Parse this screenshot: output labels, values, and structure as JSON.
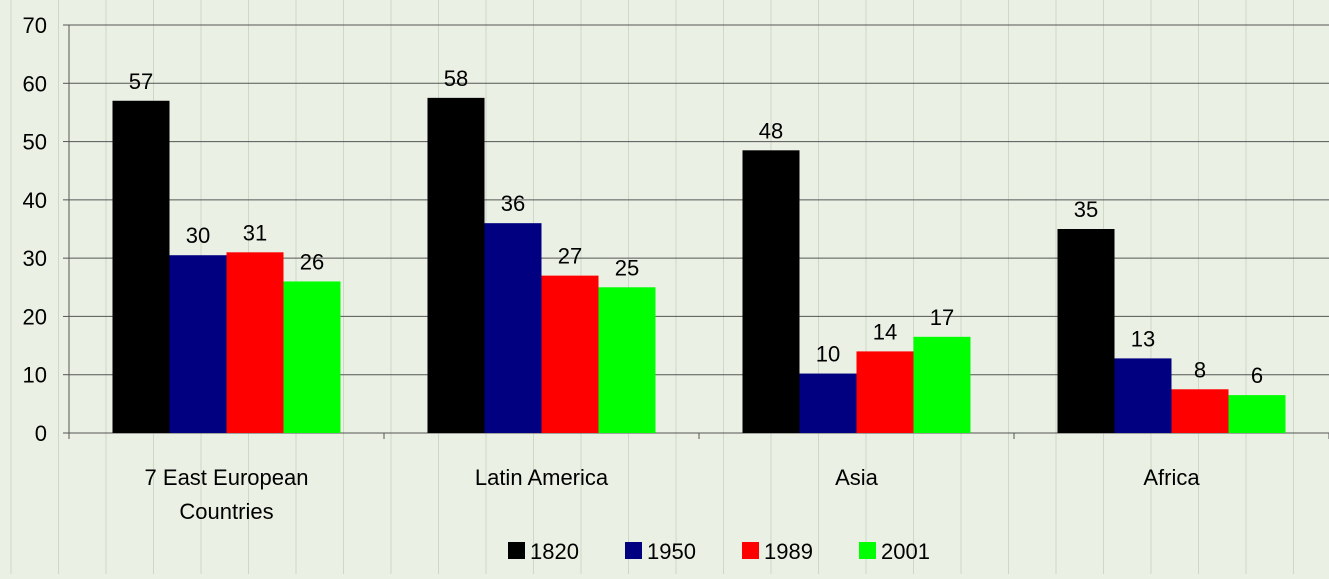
{
  "chart_data": {
    "type": "bar",
    "title": "",
    "xlabel": "",
    "ylabel": "",
    "ylim": [
      0,
      70
    ],
    "yticks": [
      0,
      10,
      20,
      30,
      40,
      50,
      60,
      70
    ],
    "grid": true,
    "legend_position": "bottom",
    "categories": [
      [
        "7 East European",
        "Countries"
      ],
      [
        "Latin America"
      ],
      [
        "Asia"
      ],
      [
        "Africa"
      ]
    ],
    "series": [
      {
        "name": "1820",
        "color": "#000000",
        "values": [
          57,
          57.5,
          48.5,
          35
        ],
        "labels": [
          "57",
          "58",
          "48",
          "35"
        ]
      },
      {
        "name": "1950",
        "color": "#000080",
        "values": [
          30.5,
          36,
          10.2,
          12.8
        ],
        "labels": [
          "30",
          "36",
          "10",
          "13"
        ]
      },
      {
        "name": "1989",
        "color": "#ff0000",
        "values": [
          31,
          27,
          14,
          7.5
        ],
        "labels": [
          "31",
          "27",
          "14",
          "8"
        ]
      },
      {
        "name": "2001",
        "color": "#00ff00",
        "values": [
          26,
          25,
          16.5,
          6.5
        ],
        "labels": [
          "26",
          "25",
          "17",
          "6"
        ]
      }
    ]
  }
}
